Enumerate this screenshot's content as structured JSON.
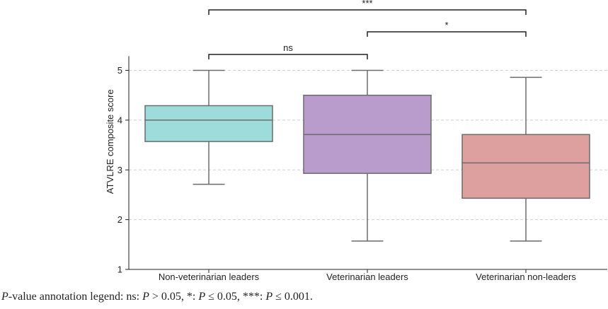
{
  "chart_data": {
    "type": "box",
    "ylabel": "ATVLRE composite score",
    "xlabel": "",
    "ylim": [
      1,
      5.4
    ],
    "yticks": [
      1,
      2,
      3,
      4,
      5
    ],
    "grid": "horizontal dashed",
    "categories": [
      "Non-veterinarian leaders",
      "Veterinarian leaders",
      "Veterinarian non-leaders"
    ],
    "boxes": [
      {
        "category": "Non-veterinarian leaders",
        "whisker_low": 2.71,
        "q1": 3.57,
        "median": 4.0,
        "q3": 4.29,
        "whisker_high": 5.0,
        "color": "#9edcdc"
      },
      {
        "category": "Veterinarian leaders",
        "whisker_low": 1.57,
        "q1": 2.93,
        "median": 3.71,
        "q3": 4.5,
        "whisker_high": 5.0,
        "color": "#b99ccb"
      },
      {
        "category": "Veterinarian non-leaders",
        "whisker_low": 1.57,
        "q1": 2.43,
        "median": 3.14,
        "q3": 3.71,
        "whisker_high": 4.86,
        "color": "#dda09f"
      }
    ],
    "significance": [
      {
        "from": 0,
        "to": 1,
        "label": "ns"
      },
      {
        "from": 1,
        "to": 2,
        "label": "*"
      },
      {
        "from": 0,
        "to": 2,
        "label": "***"
      }
    ]
  },
  "caption": {
    "p": "P",
    "rest": "-value annotation legend: ns: ",
    "p2": "P",
    "rest2": " > 0.05, *: ",
    "p3": "P",
    "rest3": " ≤ 0.05, ***: ",
    "p4": "P",
    "rest4": " ≤ 0.001."
  }
}
